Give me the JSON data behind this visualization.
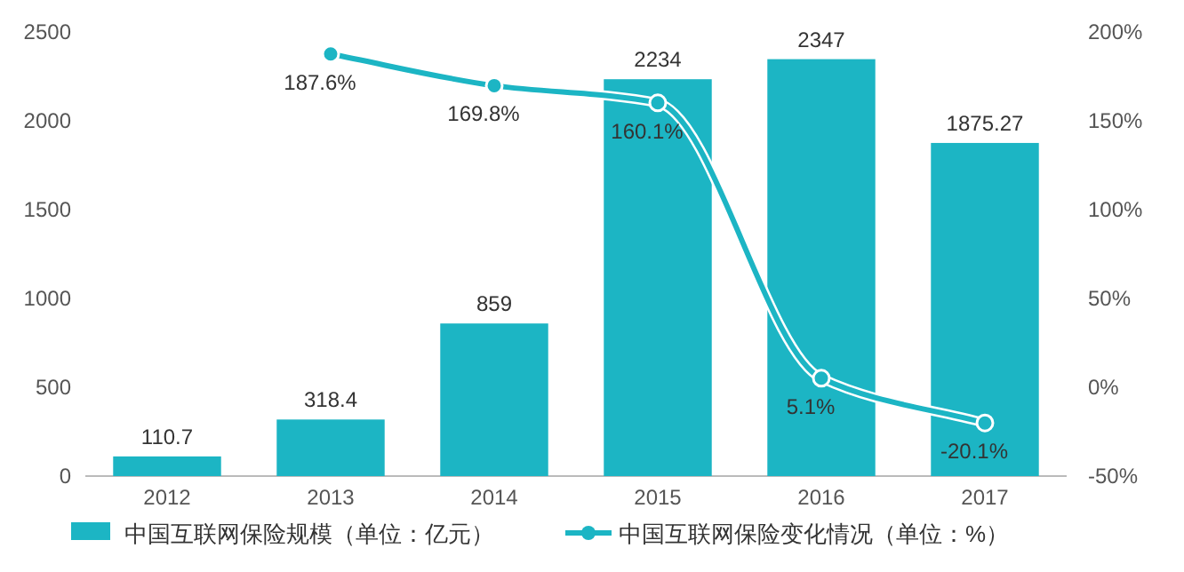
{
  "chart_data": {
    "type": "bar",
    "categories": [
      "2012",
      "2013",
      "2014",
      "2015",
      "2016",
      "2017"
    ],
    "series": [
      {
        "name": "中国互联网保险规模（单位：亿元）",
        "color": "#1cb5c4",
        "values": [
          110.7,
          318.4,
          859,
          2234,
          2347,
          1875.27
        ],
        "value_labels": [
          "110.7",
          "318.4",
          "859",
          "2234",
          "2347",
          "1875.27"
        ]
      },
      {
        "name": "中国互联网保险变化情况（单位：%）",
        "type": "line",
        "axis": "y2",
        "color": "#1cb5c4",
        "marker": "circle",
        "values": [
          null,
          187.6,
          169.8,
          160.1,
          5.1,
          -20.1
        ],
        "value_labels": [
          null,
          "187.6%",
          "169.8%",
          "160.1%",
          "5.1%",
          "-20.1%"
        ]
      }
    ],
    "ylim": [
      0,
      2500
    ],
    "yticks": [
      0,
      500,
      1000,
      1500,
      2000,
      2500
    ],
    "y2lim": [
      -50,
      200
    ],
    "y2ticks": [
      {
        "value": -50,
        "label": "-50%"
      },
      {
        "value": 0,
        "label": "0%"
      },
      {
        "value": 50,
        "label": "50%"
      },
      {
        "value": 100,
        "label": "100%"
      },
      {
        "value": 150,
        "label": "150%"
      },
      {
        "value": 200,
        "label": "200%"
      }
    ],
    "grid": false,
    "legend": "bottom"
  }
}
